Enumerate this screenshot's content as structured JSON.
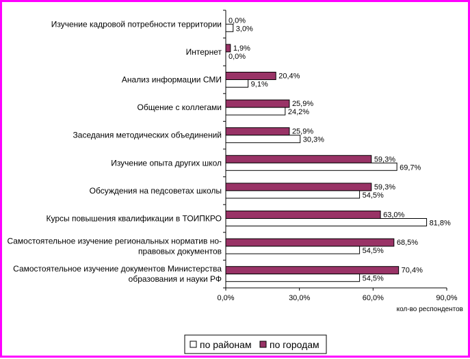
{
  "chart_data": {
    "type": "bar",
    "orientation": "horizontal",
    "categories": [
      [
        "Изучение кадровой потребности территории"
      ],
      [
        "Интернет"
      ],
      [
        "Анализ информации СМИ"
      ],
      [
        "Общение с коллегами"
      ],
      [
        "Заседания методических объединений"
      ],
      [
        "Изучение опыта других школ"
      ],
      [
        "Обсуждения на педсоветах школы"
      ],
      [
        "Курсы повышения квалификации в ТОИПКРО"
      ],
      [
        "Самостоятельное изучение региональных норматив но-",
        "правовых документов"
      ],
      [
        "Самостоятельное изучение документов Министерства",
        "образования и науки РФ"
      ]
    ],
    "series": [
      {
        "name": "по городам",
        "color": "#993366",
        "values": [
          0.0,
          1.9,
          20.4,
          25.9,
          25.9,
          59.3,
          59.3,
          63.0,
          68.5,
          70.4
        ],
        "labels": [
          "0,0%",
          "1,9%",
          "20,4%",
          "25,9%",
          "25,9%",
          "59,3%",
          "59,3%",
          "63,0%",
          "68,5%",
          "70,4%"
        ]
      },
      {
        "name": "по районам",
        "color": "#ffffff",
        "values": [
          3.0,
          0.0,
          9.1,
          24.2,
          30.3,
          69.7,
          54.5,
          81.8,
          54.5,
          54.5
        ],
        "labels": [
          "3,0%",
          "0,0%",
          "9,1%",
          "24,2%",
          "30,3%",
          "69,7%",
          "54,5%",
          "81,8%",
          "54,5%",
          "54,5%"
        ]
      }
    ],
    "xlim": [
      0,
      90
    ],
    "ticks": [
      0,
      30,
      60,
      90
    ],
    "tick_labels": [
      "0,0%",
      "30,0%",
      "60,0%",
      "90,0%"
    ],
    "xlabel": "кол-во респондентов",
    "legend": {
      "position": "bottom",
      "entries": [
        {
          "label": "по районам",
          "color": "#ffffff"
        },
        {
          "label": "по городам",
          "color": "#993366"
        }
      ]
    }
  },
  "frame_color": "#ff00ff"
}
